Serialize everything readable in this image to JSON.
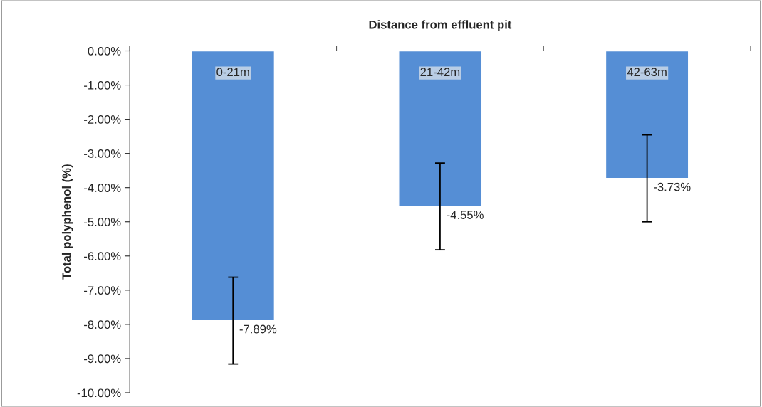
{
  "chart_data": {
    "type": "bar",
    "xlabel": "Distance from effluent pit",
    "ylabel": "Total polyphenol (%)",
    "categories": [
      "0-21m",
      "21-42m",
      "42-63m"
    ],
    "values": [
      -7.89,
      -4.55,
      -3.73
    ],
    "errors": [
      1.27,
      1.27,
      1.27
    ],
    "value_labels": [
      "-7.89%",
      "-4.55%",
      "-3.73%"
    ],
    "color": "#558ed5",
    "ylim": [
      -10,
      0
    ],
    "yticks": [
      {
        "value": 0,
        "label": "0.00%"
      },
      {
        "value": -1,
        "label": "-1.00%"
      },
      {
        "value": -2,
        "label": "-2.00%"
      },
      {
        "value": -3,
        "label": "-3.00%"
      },
      {
        "value": -4,
        "label": "-4.00%"
      },
      {
        "value": -5,
        "label": "-5.00%"
      },
      {
        "value": -6,
        "label": "-6.00%"
      },
      {
        "value": -7,
        "label": "-7.00%"
      },
      {
        "value": -8,
        "label": "-8.00%"
      },
      {
        "value": -9,
        "label": "-9.00%"
      },
      {
        "value": -10,
        "label": "-10.00%"
      }
    ],
    "grid": false,
    "legend": false
  }
}
